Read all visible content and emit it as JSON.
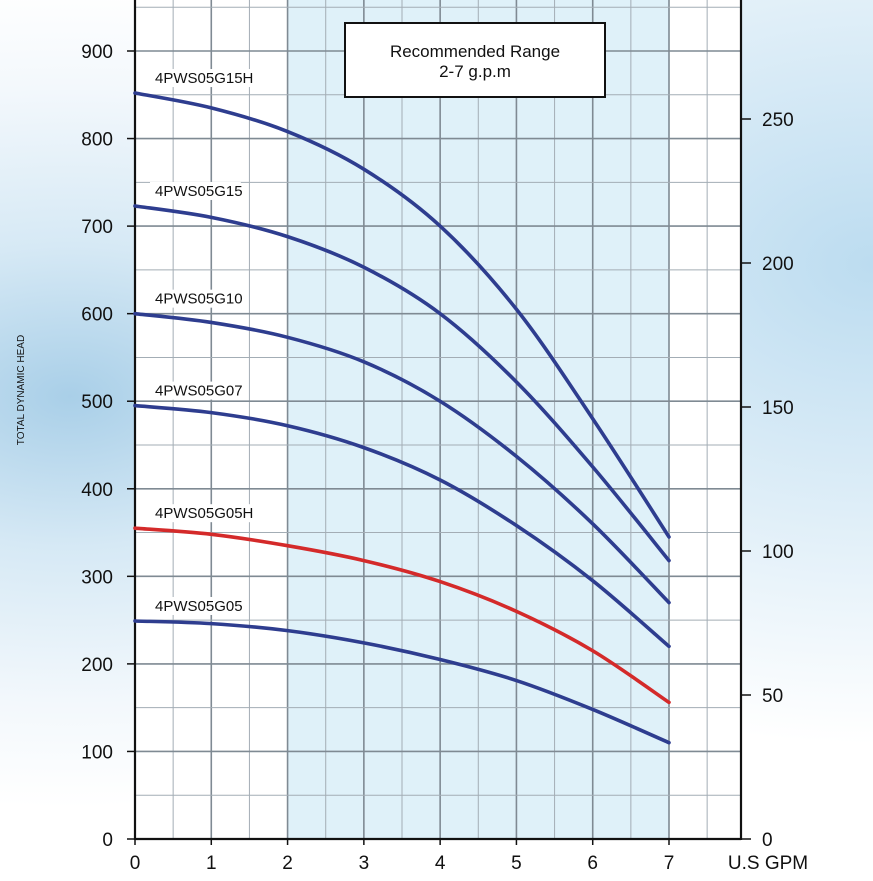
{
  "chart_data": {
    "type": "line",
    "ylabel": "TOTAL DYNAMIC HEAD",
    "xlabel": "U.S GPM",
    "xlim": [
      0,
      7
    ],
    "ylim": [
      0,
      900
    ],
    "y2lim": [
      0,
      275
    ],
    "x_ticks": [
      "0",
      "1",
      "2",
      "3",
      "4",
      "5",
      "6",
      "7"
    ],
    "y_ticks": [
      "0",
      "100",
      "200",
      "300",
      "400",
      "500",
      "600",
      "700",
      "800",
      "900"
    ],
    "y2_ticks": [
      "0",
      "50",
      "100",
      "150",
      "200",
      "250"
    ],
    "grid": true,
    "recommended_range": {
      "label_line1": "Recommended Range",
      "label_line2": "2-7 g.p.m",
      "x_from": 2,
      "x_to": 7,
      "fill_color": "#dff1f9"
    },
    "series": [
      {
        "name": "4PWS05G15H",
        "color": "#2e3d8f",
        "x": [
          0,
          1,
          2,
          3,
          4,
          5,
          6,
          7
        ],
        "y": [
          852,
          835,
          808,
          765,
          700,
          605,
          480,
          345
        ]
      },
      {
        "name": "4PWS05G15",
        "color": "#2e3d8f",
        "x": [
          0,
          1,
          2,
          3,
          4,
          5,
          6,
          7
        ],
        "y": [
          723,
          710,
          688,
          653,
          600,
          522,
          425,
          318
        ]
      },
      {
        "name": "4PWS05G10",
        "color": "#2e3d8f",
        "x": [
          0,
          1,
          2,
          3,
          4,
          5,
          6,
          7
        ],
        "y": [
          600,
          590,
          573,
          545,
          500,
          437,
          360,
          270
        ]
      },
      {
        "name": "4PWS05G07",
        "color": "#2e3d8f",
        "x": [
          0,
          1,
          2,
          3,
          4,
          5,
          6,
          7
        ],
        "y": [
          495,
          487,
          472,
          447,
          410,
          358,
          295,
          220
        ]
      },
      {
        "name": "4PWS05G05H",
        "color": "#d42a2a",
        "x": [
          0,
          1,
          2,
          3,
          4,
          5,
          6,
          7
        ],
        "y": [
          355,
          348,
          335,
          318,
          294,
          260,
          215,
          156
        ]
      },
      {
        "name": "4PWS05G05",
        "color": "#2e3d8f",
        "x": [
          0,
          1,
          2,
          3,
          4,
          5,
          6,
          7
        ],
        "y": [
          249,
          246,
          238,
          224,
          205,
          181,
          148,
          110
        ]
      }
    ]
  }
}
